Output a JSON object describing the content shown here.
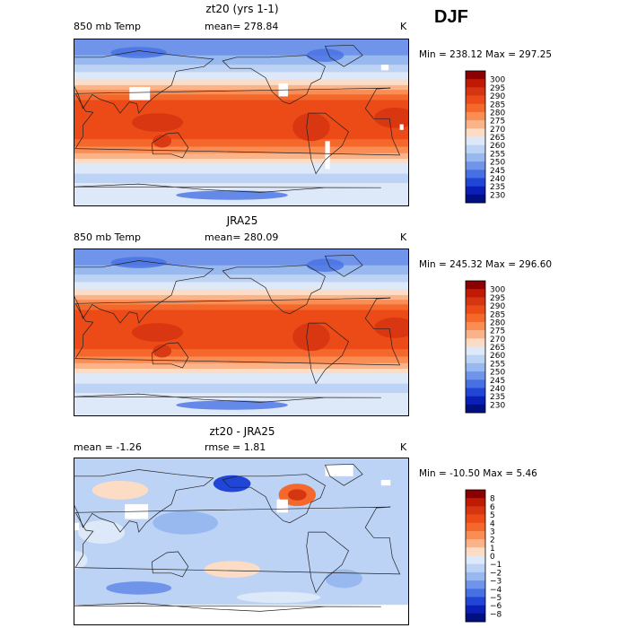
{
  "season": "DJF",
  "panels": [
    {
      "title": "zt20 (yrs 1-1)",
      "left_label": "850 mb Temp",
      "center_label": "mean= 278.84",
      "right_label": "K",
      "minmax": "Min = 238.12 Max = 297.25",
      "kind": "abs"
    },
    {
      "title": "JRA25",
      "left_label": "850 mb Temp",
      "center_label": "mean= 280.09",
      "right_label": "K",
      "minmax": "Min = 245.32 Max = 296.60",
      "kind": "abs"
    },
    {
      "title": "zt20 - JRA25",
      "left_label": "mean =  -1.26",
      "center_label": "rmse =   1.81",
      "right_label": "K",
      "minmax": "Min = -10.50 Max =   5.46",
      "kind": "diff"
    }
  ],
  "colorbars": {
    "abs": {
      "labels": [
        "300",
        "295",
        "290",
        "285",
        "280",
        "275",
        "270",
        "265",
        "260",
        "255",
        "250",
        "245",
        "240",
        "235",
        "230"
      ],
      "colors": [
        "#8b0000",
        "#c01a05",
        "#d63512",
        "#ec4a17",
        "#f5682c",
        "#f98d54",
        "#fbb48a",
        "#fcdcc5",
        "#dde8f8",
        "#bcd3f5",
        "#98b8f0",
        "#6f94ea",
        "#4771e3",
        "#2146d7",
        "#0a1fb5",
        "#001080"
      ]
    },
    "diff": {
      "labels": [
        "8",
        "6",
        "5",
        "4",
        "3",
        "2",
        "1",
        "0",
        "−1",
        "−2",
        "−3",
        "−4",
        "−5",
        "−6",
        "−8"
      ],
      "colors": [
        "#8b0000",
        "#c01a05",
        "#d63512",
        "#ec4a17",
        "#f5682c",
        "#f98d54",
        "#fbb48a",
        "#fcdcc5",
        "#dde8f8",
        "#bcd3f5",
        "#98b8f0",
        "#6f94ea",
        "#4771e3",
        "#2146d7",
        "#0a1fb5",
        "#001080"
      ]
    }
  }
}
